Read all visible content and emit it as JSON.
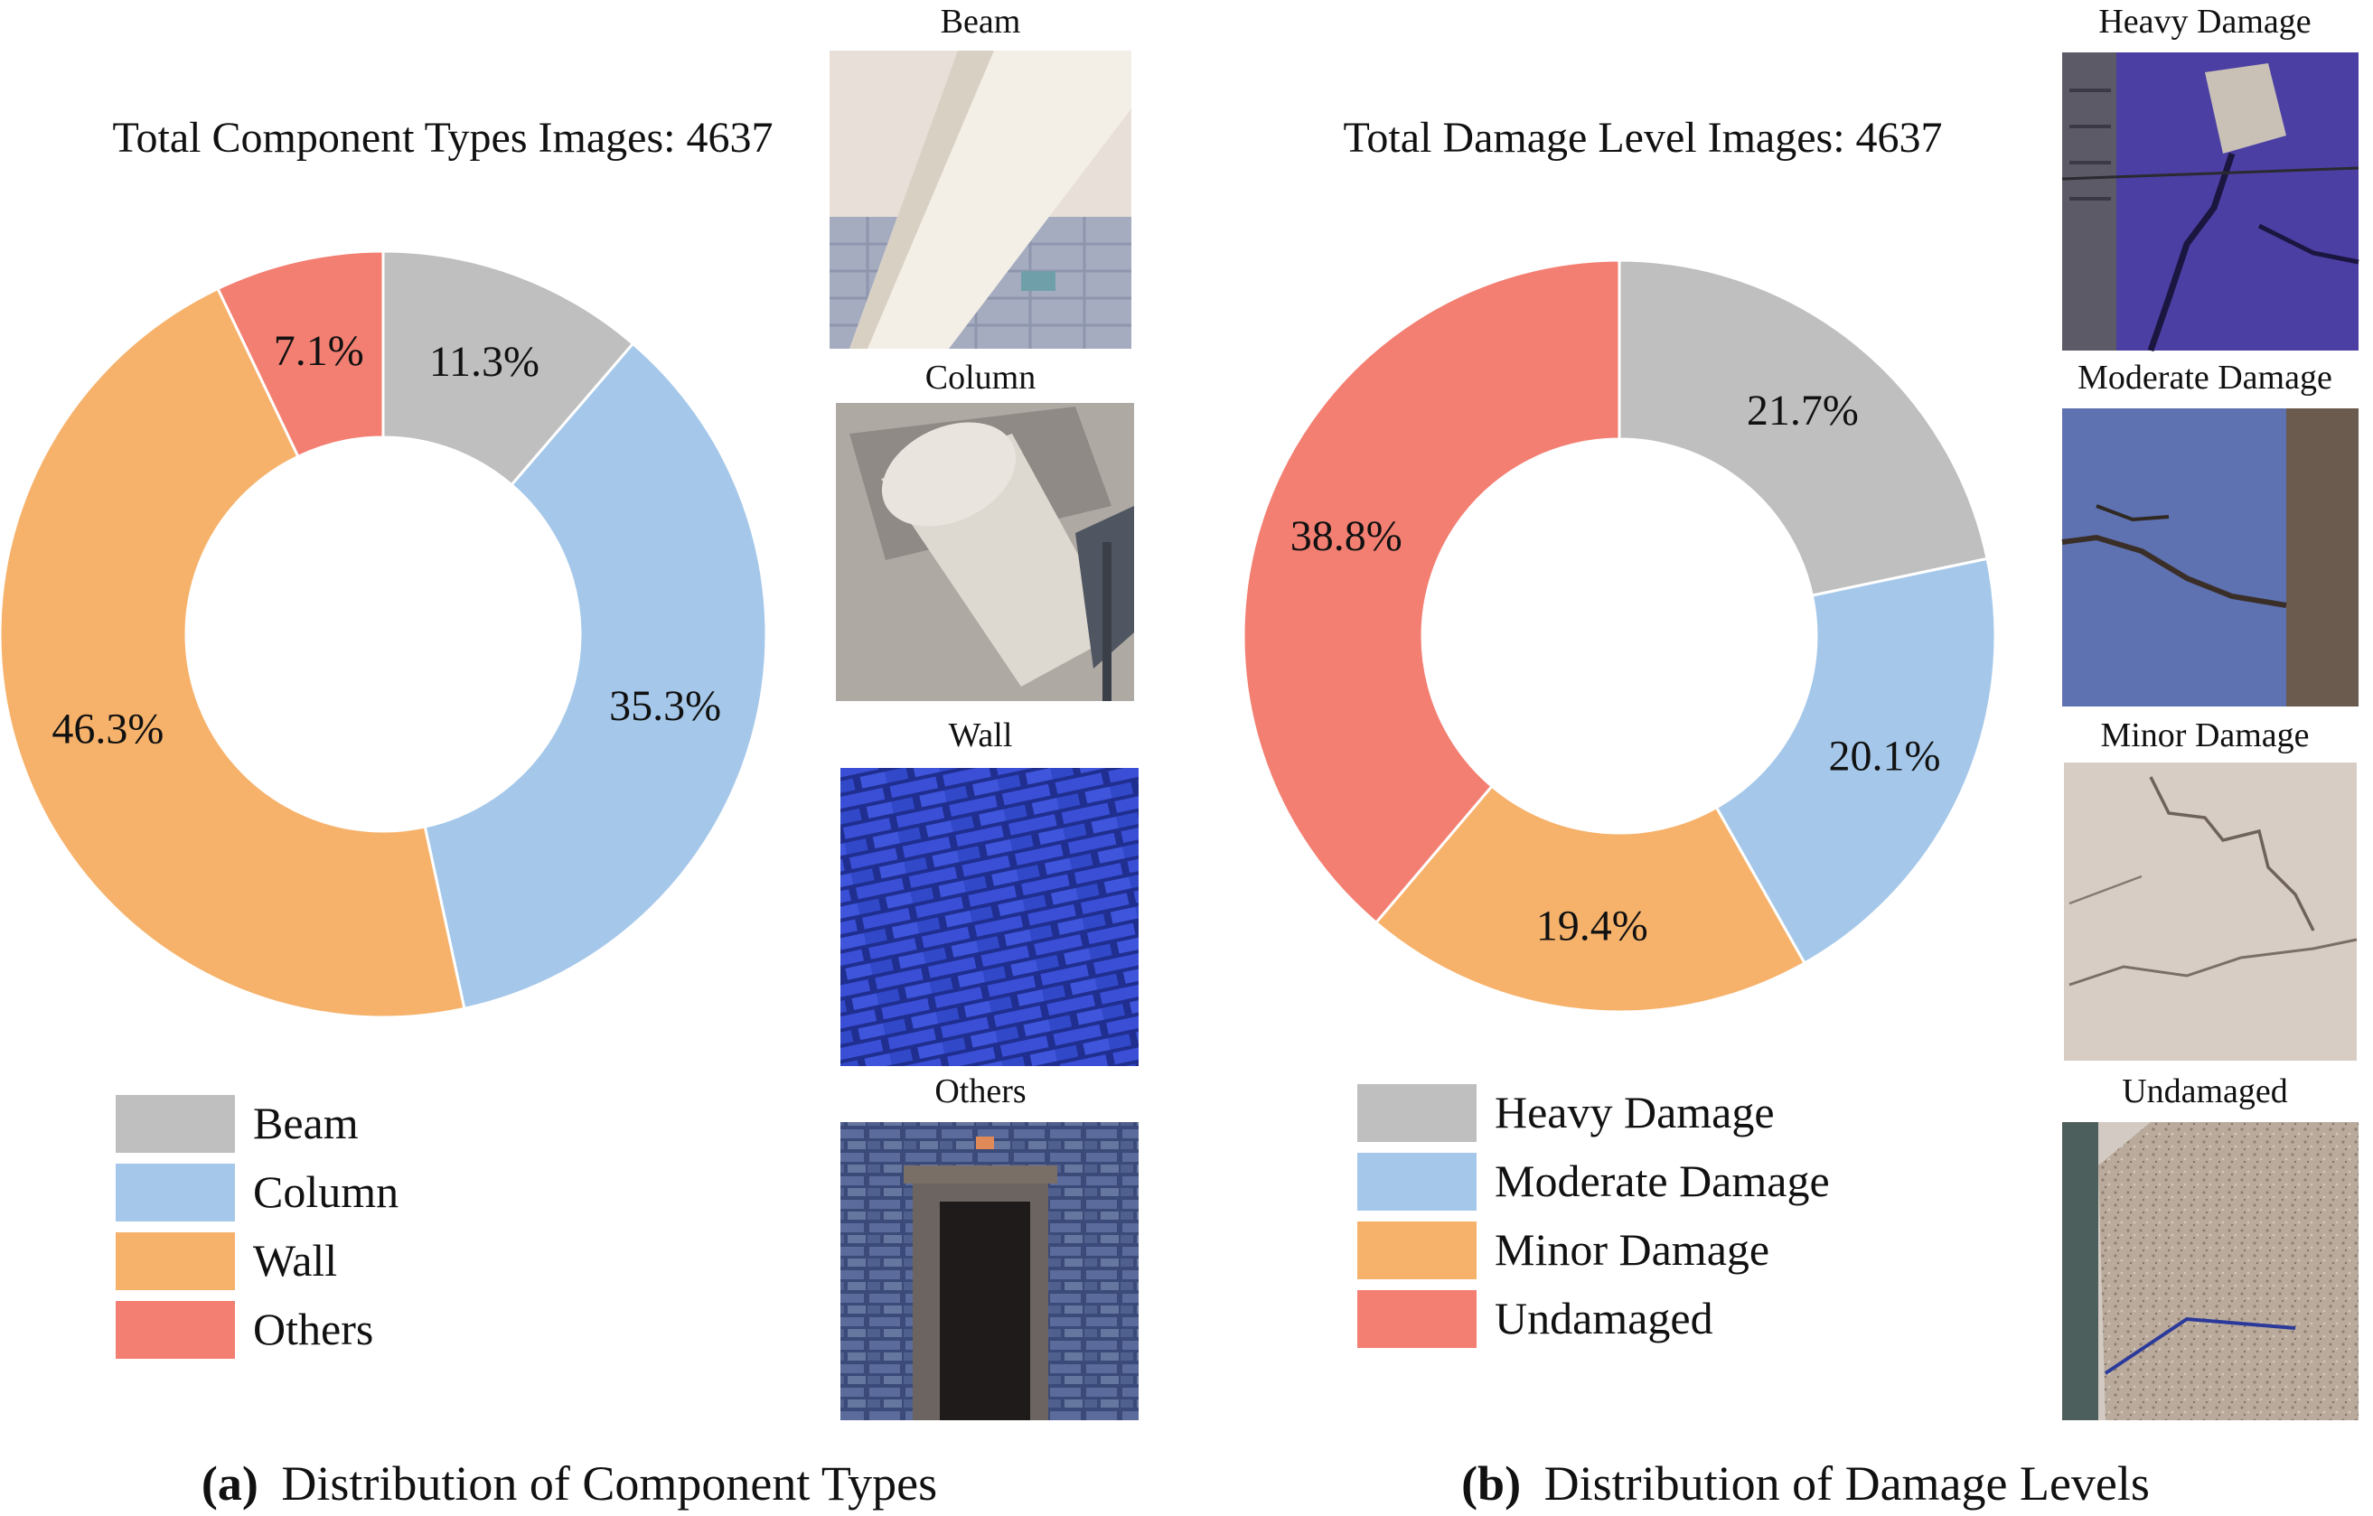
{
  "chart_data": [
    {
      "type": "pie",
      "title": "Total Component Types Images: 4637",
      "caption_label": "(a)",
      "caption_text": "Distribution of Component Types",
      "categories": [
        "Beam",
        "Column",
        "Wall",
        "Others"
      ],
      "values": [
        11.3,
        35.3,
        46.3,
        7.1
      ],
      "value_labels": [
        "11.3%",
        "35.3%",
        "46.3%",
        "7.1%"
      ],
      "colors": [
        "#bfbfbf",
        "#a5c8ea",
        "#f6b26b",
        "#f37f72"
      ],
      "legend_position": "bottom-left",
      "sample_images": [
        {
          "label": "Beam",
          "icon": "beam-photo"
        },
        {
          "label": "Column",
          "icon": "column-photo"
        },
        {
          "label": "Wall",
          "icon": "wall-photo"
        },
        {
          "label": "Others",
          "icon": "doorway-photo"
        }
      ]
    },
    {
      "type": "pie",
      "title": "Total Damage Level Images: 4637",
      "caption_label": "(b)",
      "caption_text": "Distribution of Damage Levels",
      "categories": [
        "Heavy Damage",
        "Moderate Damage",
        "Minor Damage",
        "Undamaged"
      ],
      "values": [
        21.7,
        20.1,
        19.4,
        38.8
      ],
      "value_labels": [
        "21.7%",
        "20.1%",
        "19.4%",
        "38.8%"
      ],
      "colors": [
        "#bfbfbf",
        "#a5c8ea",
        "#f6b26b",
        "#f37f72"
      ],
      "legend_position": "bottom-left",
      "sample_images": [
        {
          "label": "Heavy Damage",
          "icon": "heavy-damage-photo"
        },
        {
          "label": "Moderate Damage",
          "icon": "moderate-damage-photo"
        },
        {
          "label": "Minor Damage",
          "icon": "minor-damage-photo"
        },
        {
          "label": "Undamaged",
          "icon": "undamaged-photo"
        }
      ]
    }
  ]
}
